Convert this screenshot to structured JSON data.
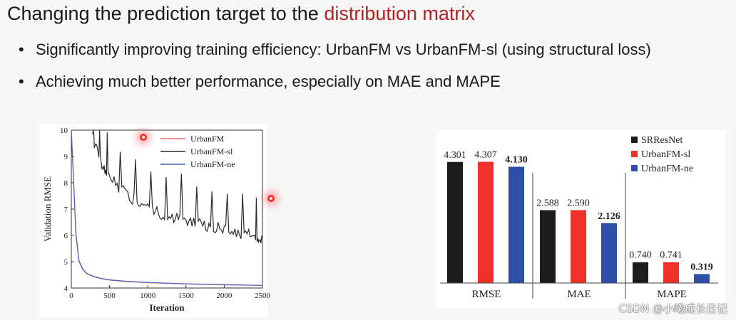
{
  "slide": {
    "title_plain": "Changing the prediction target to the ",
    "title_highlight": "distribution matrix",
    "bullets": [
      "Significantly improving training efficiency: UrbanFM vs UrbanFM-sl (using structural loss)",
      "Achieving much better performance, especially on MAE and MAPE"
    ],
    "watermark": "CSDN @小曦成长日记"
  },
  "colors": {
    "title_highlight": "#b22222",
    "urbanfm": "#e8707a",
    "urbanfm_sl": "#2a2a2a",
    "urbanfm_ne": "#4a5fc0",
    "bar_srresnet": "#1c1c1c",
    "bar_urbanfm_sl": "#f0312a",
    "bar_urbanfm_ne": "#2e4ea8"
  },
  "chart_data": [
    {
      "type": "line",
      "xlabel": "Iteration",
      "ylabel": "Validation RMSE",
      "xlim": [
        0,
        2500
      ],
      "ylim": [
        4,
        10
      ],
      "xticks": [
        "0",
        "500",
        "1000",
        "1500",
        "2000",
        "2500"
      ],
      "yticks": [
        "4",
        "5",
        "6",
        "7",
        "8",
        "9",
        "10"
      ],
      "legend_position": "top-right",
      "series": [
        {
          "name": "UrbanFM",
          "color": "#e8707a",
          "x": [
            0,
            30,
            60,
            100,
            150,
            200,
            300,
            400,
            500,
            700,
            1000,
            1500,
            2000,
            2500
          ],
          "y": [
            10,
            8.0,
            6.0,
            5.0,
            4.7,
            4.55,
            4.42,
            4.35,
            4.3,
            4.25,
            4.2,
            4.15,
            4.12,
            4.1
          ]
        },
        {
          "name": "UrbanFM-sl",
          "color": "#2a2a2a",
          "x": [
            280,
            300,
            350,
            400,
            450,
            500,
            600,
            700,
            800,
            900,
            1000,
            1100,
            1200,
            1300,
            1400,
            1500,
            1600,
            1700,
            1800,
            1900,
            2000,
            2100,
            2200,
            2300,
            2400,
            2450,
            2500
          ],
          "y": [
            10,
            9.5,
            9.1,
            8.7,
            8.4,
            8.2,
            7.9,
            7.6,
            7.4,
            7.2,
            7.0,
            6.9,
            6.8,
            6.7,
            6.65,
            6.6,
            6.5,
            6.4,
            6.3,
            6.3,
            6.2,
            6.15,
            6.1,
            6.05,
            6.0,
            5.95,
            5.9
          ]
        },
        {
          "name": "UrbanFM-ne",
          "color": "#4a5fc0",
          "x": [
            0,
            30,
            60,
            100,
            150,
            200,
            300,
            400,
            500,
            700,
            1000,
            1500,
            2000,
            2500
          ],
          "y": [
            10,
            8.1,
            6.1,
            5.05,
            4.72,
            4.56,
            4.43,
            4.36,
            4.31,
            4.26,
            4.21,
            4.16,
            4.13,
            4.1
          ]
        }
      ]
    },
    {
      "type": "bar",
      "categories": [
        "RMSE",
        "MAE",
        "MAPE"
      ],
      "legend_position": "top-right",
      "series": [
        {
          "name": "SRResNet",
          "values": [
            4.301,
            2.588,
            0.74
          ],
          "labels": [
            "4.301",
            "2.588",
            "0.740"
          ],
          "bold": false,
          "color": "#1c1c1c"
        },
        {
          "name": "UrbanFM-sl",
          "values": [
            4.307,
            2.59,
            0.741
          ],
          "labels": [
            "4.307",
            "2.590",
            "0.741"
          ],
          "bold": false,
          "color": "#f0312a"
        },
        {
          "name": "UrbanFM-ne",
          "values": [
            4.13,
            2.126,
            0.319
          ],
          "labels": [
            "4.130",
            "2.126",
            "0.319"
          ],
          "bold": true,
          "color": "#2e4ea8"
        }
      ]
    }
  ]
}
